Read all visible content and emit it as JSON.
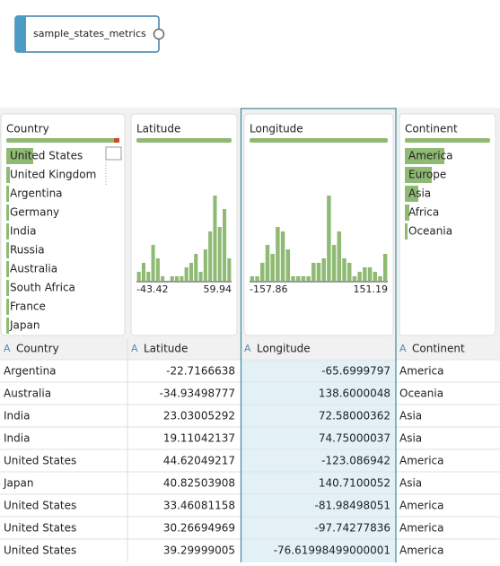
{
  "node": {
    "label": "sample_states_metrics"
  },
  "profiles": [
    {
      "title": "Country",
      "items": [
        {
          "label": "United States",
          "count": 30
        },
        {
          "label": "United Kingdom",
          "count": 4
        },
        {
          "label": "Argentina",
          "count": 3
        },
        {
          "label": "Germany",
          "count": 3
        },
        {
          "label": "India",
          "count": 3
        },
        {
          "label": "Russia",
          "count": 3
        },
        {
          "label": "Australia",
          "count": 3
        },
        {
          "label": "South Africa",
          "count": 3
        },
        {
          "label": "France",
          "count": 3
        },
        {
          "label": "Japan",
          "count": 3
        }
      ]
    },
    {
      "title": "Latitude",
      "histogram": [
        10,
        20,
        10,
        40,
        25,
        5,
        0,
        5,
        5,
        5,
        15,
        20,
        30,
        10,
        35,
        55,
        95,
        60,
        80,
        25
      ],
      "min": "-43.42",
      "max": "59.94"
    },
    {
      "title": "Longitude",
      "histogram": [
        5,
        5,
        20,
        40,
        30,
        60,
        55,
        35,
        5,
        5,
        5,
        5,
        20,
        20,
        25,
        95,
        40,
        55,
        25,
        20,
        5,
        10,
        15,
        15,
        10,
        5,
        30
      ],
      "min": "-157.86",
      "max": "151.19"
    },
    {
      "title": "Continent",
      "items": [
        {
          "label": "America",
          "count": 44
        },
        {
          "label": "Europe",
          "count": 30
        },
        {
          "label": "Asia",
          "count": 15
        },
        {
          "label": "Africa",
          "count": 5
        },
        {
          "label": "Oceania",
          "count": 3
        }
      ]
    }
  ],
  "table": {
    "icon": "A",
    "headers": [
      "Country",
      "Latitude",
      "Longitude",
      "Continent"
    ],
    "rows": [
      [
        "Argentina",
        "-22.7166638",
        "-65.6999797",
        "America"
      ],
      [
        "Australia",
        "-34.93498777",
        "138.6000048",
        "Oceania"
      ],
      [
        "India",
        "23.03005292",
        "72.58000362",
        "Asia"
      ],
      [
        "India",
        "19.11042137",
        "74.75000037",
        "Asia"
      ],
      [
        "United States",
        "44.62049217",
        "-123.086942",
        "America"
      ],
      [
        "Japan",
        "40.82503908",
        "140.7100052",
        "Asia"
      ],
      [
        "United States",
        "33.46081158",
        "-81.98498051",
        "America"
      ],
      [
        "United States",
        "30.26694969",
        "-97.74277836",
        "America"
      ],
      [
        "United States",
        "39.29999005",
        "-76.61998499000001",
        "America"
      ]
    ]
  }
}
